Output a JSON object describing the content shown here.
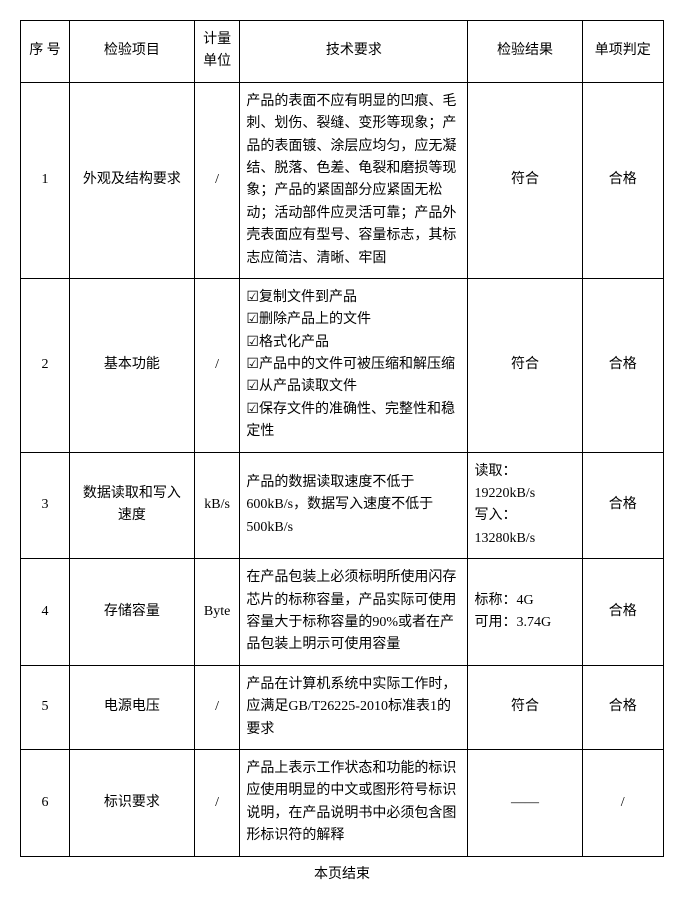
{
  "headers": {
    "seq": "序 号",
    "item": "检验项目",
    "unit": "计量单位",
    "req": "技术要求",
    "result": "检验结果",
    "judge": "单项判定"
  },
  "rows": [
    {
      "seq": "1",
      "item": "外观及结构要求",
      "unit": "/",
      "req_text": "产品的表面不应有明显的凹痕、毛刺、划伤、裂缝、变形等现象；产品的表面镀、涂层应均匀，应无凝结、脱落、色差、龟裂和磨损等现象；产品的紧固部分应紧固无松动；活动部件应灵活可靠；产品外壳表面应有型号、容量标志，其标志应简洁、清晰、牢固",
      "result": "符合",
      "result_align": "center",
      "judge": "合格"
    },
    {
      "seq": "2",
      "item": "基本功能",
      "unit": "/",
      "checklist": [
        "☑复制文件到产品",
        "☑删除产品上的文件",
        "☑格式化产品",
        "☑产品中的文件可被压缩和解压缩",
        "☑从产品读取文件",
        "☑保存文件的准确性、完整性和稳定性"
      ],
      "result": "符合",
      "result_align": "center",
      "judge": "合格"
    },
    {
      "seq": "3",
      "item": "数据读取和写入速度",
      "unit": "kB/s",
      "req_text": "产品的数据读取速度不低于600kB/s，数据写入速度不低于500kB/s",
      "result": "读取：19220kB/s\n写入：13280kB/s",
      "result_align": "left",
      "judge": "合格"
    },
    {
      "seq": "4",
      "item": "存储容量",
      "unit": "Byte",
      "req_text": "在产品包装上必须标明所使用闪存芯片的标称容量，产品实际可使用容量大于标称容量的90%或者在产品包装上明示可使用容量",
      "result": "标称：4G\n可用：3.74G",
      "result_align": "left",
      "judge": "合格"
    },
    {
      "seq": "5",
      "item": "电源电压",
      "unit": "/",
      "req_text": "产品在计算机系统中实际工作时，应满足GB/T26225-2010标准表1的要求",
      "result": "符合",
      "result_align": "center",
      "judge": "合格"
    },
    {
      "seq": "6",
      "item": "标识要求",
      "unit": "/",
      "req_text": "产品上表示工作状态和功能的标识应使用明显的中文或图形符号标识说明，在产品说明书中必须包含图形标识符的解释",
      "result": "——",
      "result_align": "center",
      "judge": "/"
    }
  ],
  "footer": "本页结束"
}
